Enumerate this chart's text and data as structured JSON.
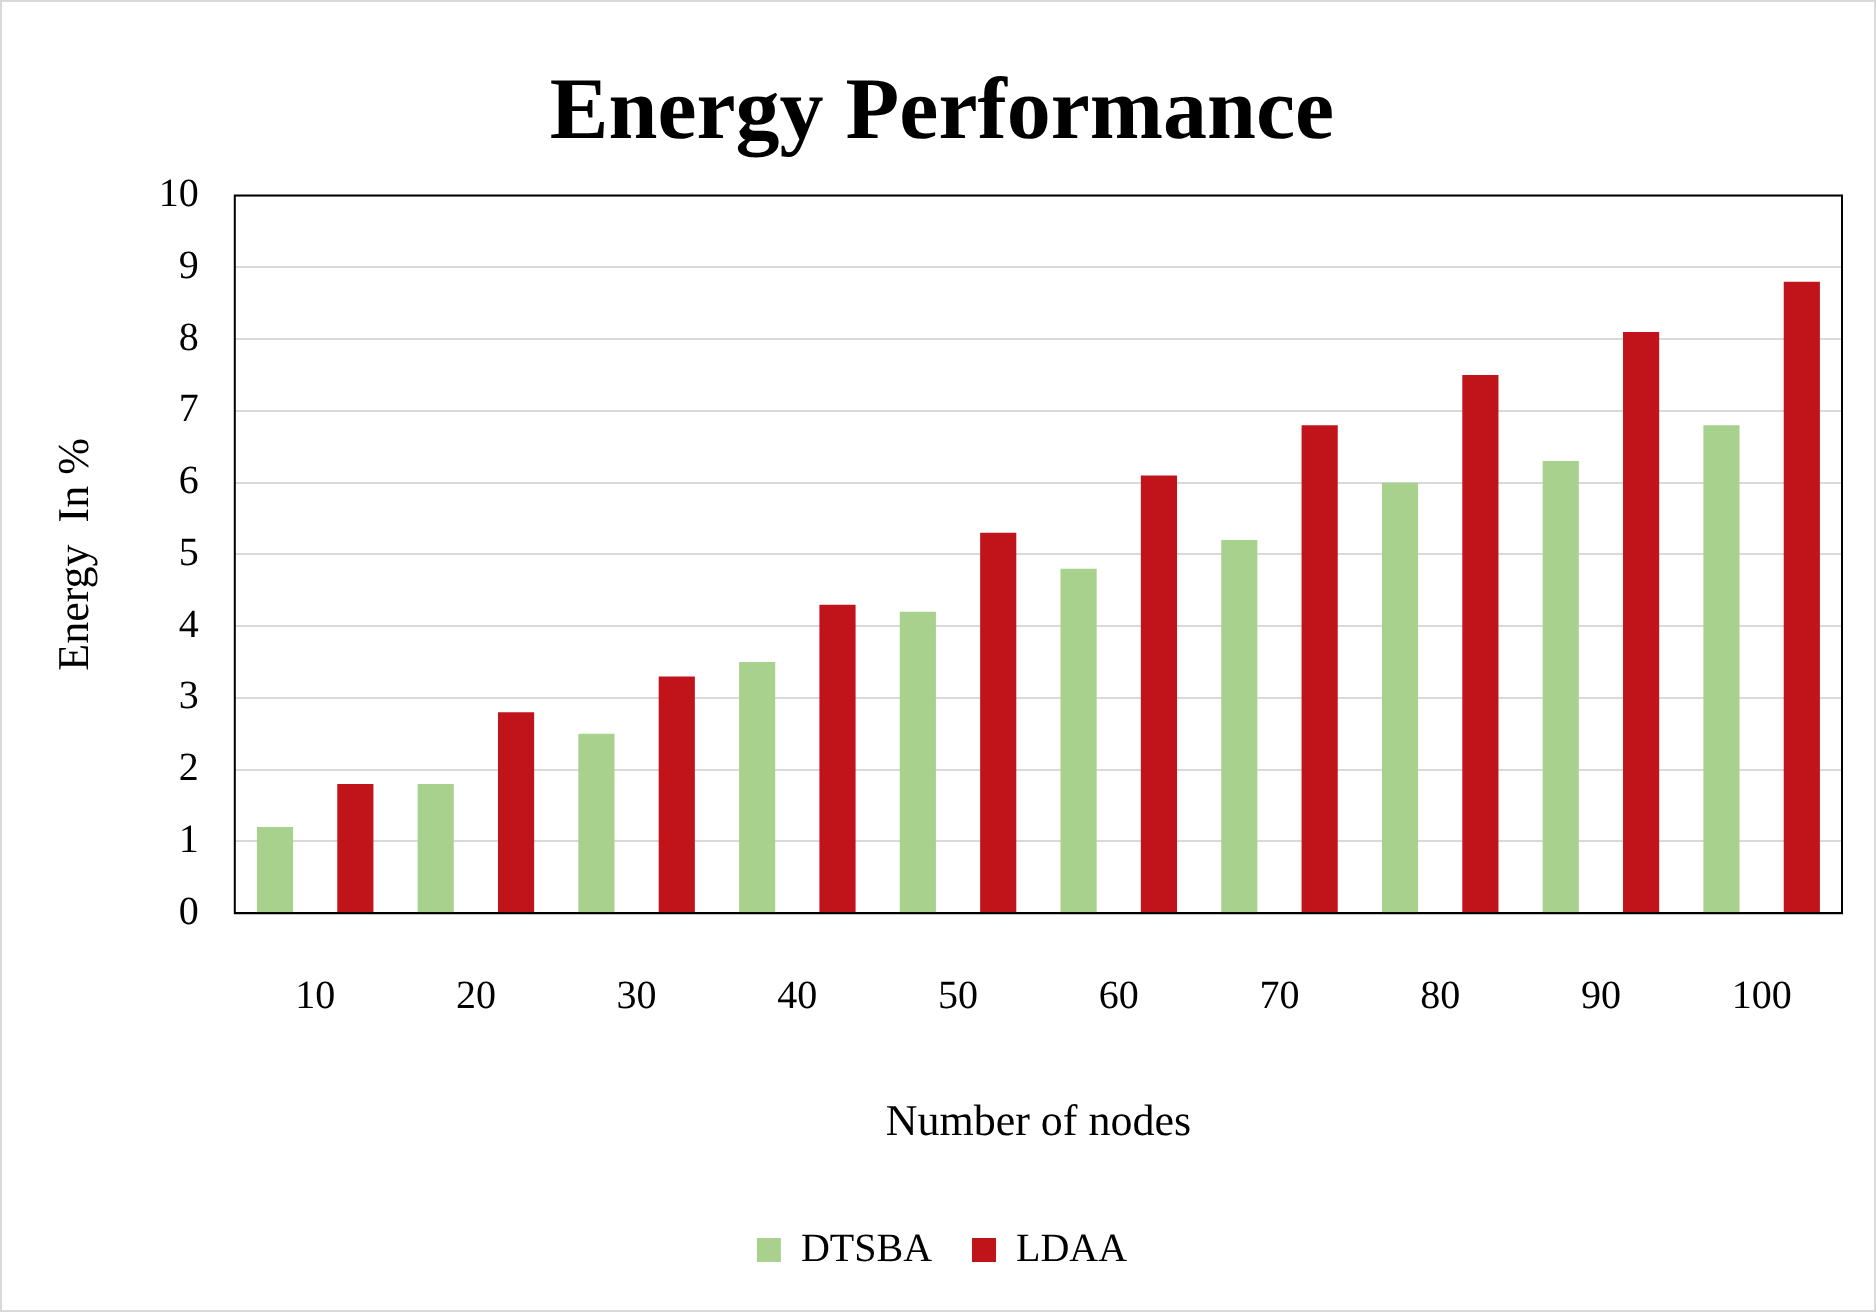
{
  "chart_data": {
    "type": "bar",
    "title": "Energy Performance",
    "xlabel": "Number of nodes",
    "ylabel": "Energy  In %",
    "categories": [
      "10",
      "20",
      "30",
      "40",
      "50",
      "60",
      "70",
      "80",
      "90",
      "100"
    ],
    "series": [
      {
        "name": "DTSBA",
        "color": "#a9d18e",
        "values": [
          1.2,
          1.8,
          2.5,
          3.5,
          4.2,
          4.8,
          5.2,
          6.0,
          6.3,
          6.8
        ]
      },
      {
        "name": "LDAA",
        "color": "#c0141a",
        "values": [
          1.8,
          2.8,
          3.3,
          4.3,
          5.3,
          6.1,
          6.8,
          7.5,
          8.1,
          8.8
        ]
      }
    ],
    "ylim": [
      0,
      10
    ],
    "yticks": [
      0,
      1,
      2,
      3,
      4,
      5,
      6,
      7,
      8,
      9,
      10
    ],
    "grid": "y",
    "legend": "bottom"
  }
}
